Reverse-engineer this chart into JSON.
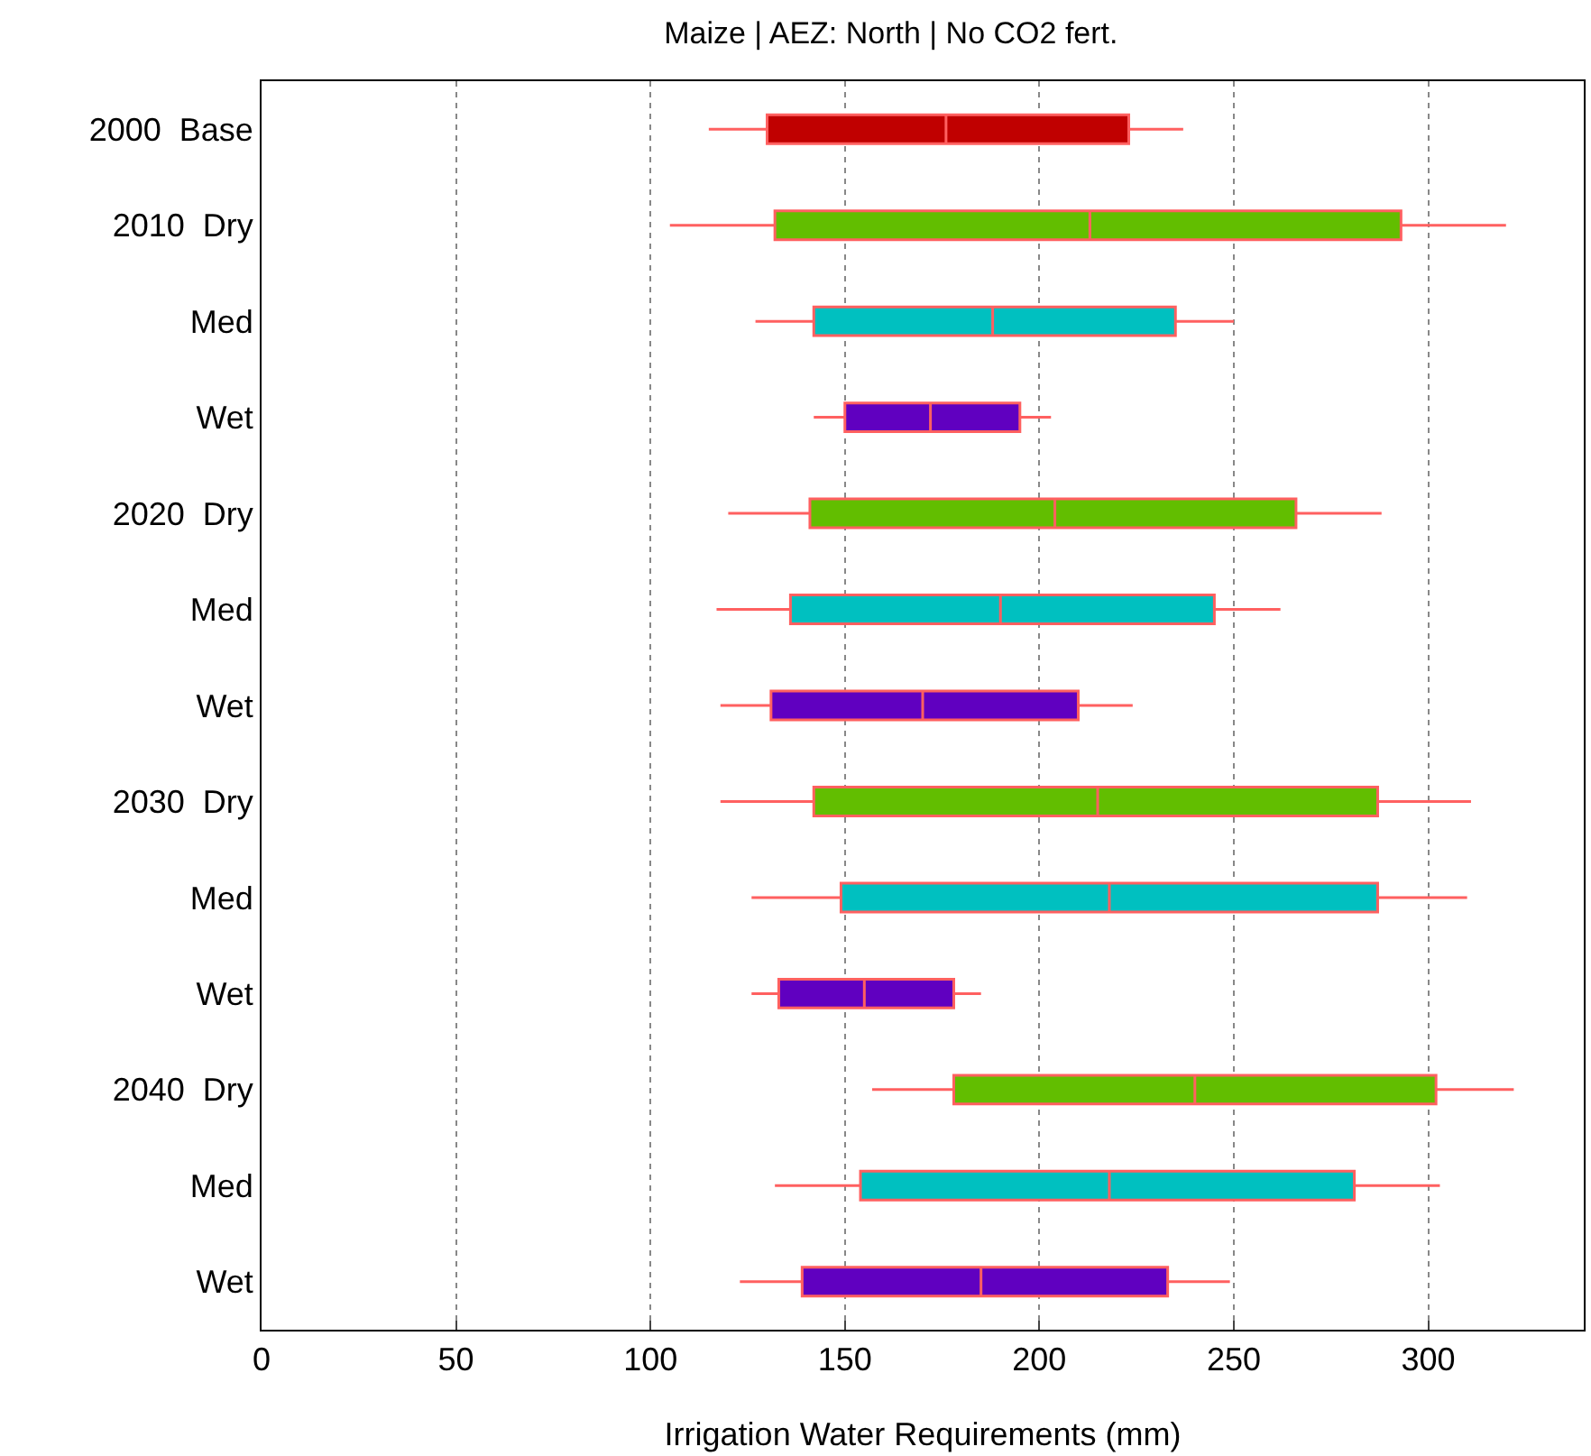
{
  "chart_data": {
    "type": "box",
    "orientation": "horizontal",
    "title": "Maize | AEZ: North | No CO2 fert.",
    "xlabel": "Irrigation Water Requirements (mm)",
    "categories": [
      "2000  Base",
      "2010  Dry",
      "Med",
      "Wet",
      "2020  Dry",
      "Med",
      "Wet",
      "2030  Dry",
      "Med",
      "Wet",
      "2040  Dry",
      "Med",
      "Wet"
    ],
    "colors": [
      "#c00000",
      "#62be00",
      "#00c0c0",
      "#6000c0",
      "#62be00",
      "#00c0c0",
      "#6000c0",
      "#62be00",
      "#00c0c0",
      "#6000c0",
      "#62be00",
      "#00c0c0",
      "#6000c0"
    ],
    "boxes": [
      {
        "low": 115,
        "q1": 130,
        "median": 176,
        "q3": 223,
        "high": 237
      },
      {
        "low": 105,
        "q1": 132,
        "median": 213,
        "q3": 293,
        "high": 320
      },
      {
        "low": 127,
        "q1": 142,
        "median": 188,
        "q3": 235,
        "high": 250
      },
      {
        "low": 142,
        "q1": 150,
        "median": 172,
        "q3": 195,
        "high": 203
      },
      {
        "low": 120,
        "q1": 141,
        "median": 204,
        "q3": 266,
        "high": 288
      },
      {
        "low": 117,
        "q1": 136,
        "median": 190,
        "q3": 245,
        "high": 262
      },
      {
        "low": 118,
        "q1": 131,
        "median": 170,
        "q3": 210,
        "high": 224
      },
      {
        "low": 118,
        "q1": 142,
        "median": 215,
        "q3": 287,
        "high": 311
      },
      {
        "low": 126,
        "q1": 149,
        "median": 218,
        "q3": 287,
        "high": 310
      },
      {
        "low": 126,
        "q1": 133,
        "median": 155,
        "q3": 178,
        "high": 185
      },
      {
        "low": 157,
        "q1": 178,
        "median": 240,
        "q3": 302,
        "high": 322
      },
      {
        "low": 132,
        "q1": 154,
        "median": 218,
        "q3": 281,
        "high": 303
      },
      {
        "low": 123,
        "q1": 139,
        "median": 185,
        "q3": 233,
        "high": 249
      }
    ],
    "xlim": [
      0,
      340
    ],
    "xticks": [
      0,
      50,
      100,
      150,
      200,
      250,
      300
    ],
    "grid": "x"
  }
}
